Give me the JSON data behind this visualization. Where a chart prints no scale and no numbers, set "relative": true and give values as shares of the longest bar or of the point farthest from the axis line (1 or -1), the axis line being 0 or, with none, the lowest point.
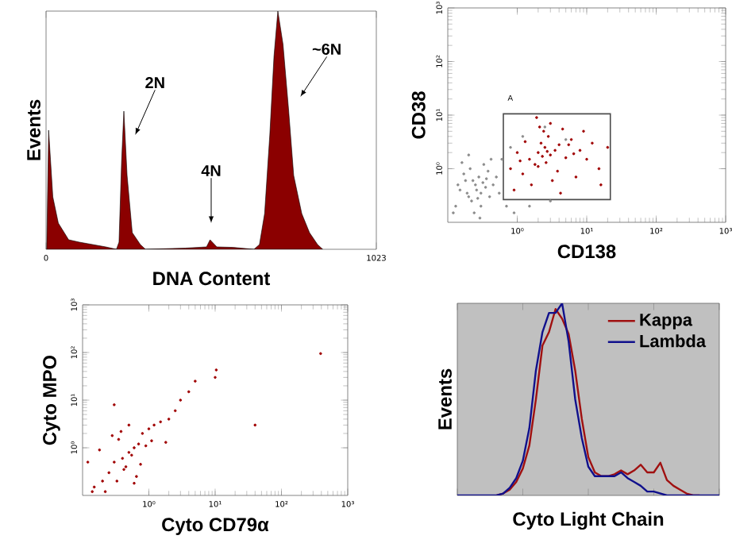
{
  "chart_data": [
    {
      "type": "area",
      "xlabel": "DNA Content",
      "ylabel": "Events",
      "relative": true,
      "color": "#8b0000",
      "x": [
        2,
        8,
        21,
        38,
        70,
        103,
        185,
        218,
        226,
        234,
        241,
        251,
        267,
        292,
        308,
        431,
        497,
        508,
        529,
        579,
        644,
        661,
        677,
        693,
        706,
        718,
        734,
        751,
        767,
        792,
        816,
        841,
        857
      ],
      "values": [
        0,
        0.5,
        0.22,
        0.11,
        0.04,
        0.03,
        0.01,
        0,
        0.03,
        0.37,
        0.58,
        0.31,
        0.07,
        0.02,
        0,
        0.005,
        0.01,
        0.04,
        0.01,
        0.008,
        0,
        0.02,
        0.15,
        0.48,
        0.81,
        1.0,
        0.86,
        0.59,
        0.31,
        0.15,
        0.07,
        0.02,
        0
      ],
      "xlim": [
        0,
        1023
      ],
      "xticks": [
        0,
        1023
      ],
      "annotations": [
        "2N",
        "4N",
        "~6N"
      ]
    },
    {
      "type": "scatter",
      "xlabel": "CD138",
      "ylabel": "CD38",
      "log": "xy",
      "xlim": [
        0.1,
        1000
      ],
      "ylim": [
        0.1,
        1000
      ],
      "xticks": [
        {
          "value": 1,
          "label": "10⁰"
        },
        {
          "value": 10,
          "label": "10¹"
        },
        {
          "value": 100,
          "label": "10²"
        },
        {
          "value": 1000,
          "label": "10³"
        }
      ],
      "yticks": [
        {
          "value": 1,
          "label": "10⁰"
        },
        {
          "value": 10,
          "label": "10¹"
        },
        {
          "value": 100,
          "label": "10²"
        },
        {
          "value": 1000,
          "label": "10³"
        }
      ],
      "series": [
        {
          "color": "#8c8c8c",
          "x": [
            0.15,
            0.2,
            0.25,
            0.3,
            0.18,
            0.22,
            0.28,
            0.35,
            0.4,
            0.13,
            0.17,
            0.24,
            0.32,
            0.45,
            0.21,
            0.26,
            0.19,
            0.3,
            0.5,
            0.14,
            0.23,
            0.27,
            0.38,
            0.16,
            0.2,
            0.33,
            0.6,
            0.8,
            1.2,
            2.5,
            5,
            0.7,
            0.9,
            1.5,
            3,
            0.55,
            0.12,
            0.42,
            0.29,
            0.36
          ],
          "values": [
            0.4,
            0.3,
            0.5,
            0.35,
            0.6,
            0.25,
            0.7,
            0.45,
            0.3,
            0.2,
            0.8,
            0.15,
            0.55,
            0.5,
            1.0,
            0.4,
            0.35,
            0.2,
            0.7,
            0.5,
            0.6,
            0.28,
            0.9,
            1.3,
            1.8,
            1.2,
            1.5,
            2.5,
            4,
            6,
            3.5,
            0.2,
            0.15,
            0.2,
            0.25,
            0.35,
            0.15,
            1.5,
            0.12,
            0.65
          ]
        },
        {
          "color": "#a00000",
          "x": [
            2,
            2.5,
            3,
            1.5,
            3.5,
            2.2,
            1.8,
            4,
            5,
            2.8,
            1.2,
            1,
            0.8,
            6,
            8,
            10,
            15,
            20,
            3.2,
            2.4,
            1.6,
            2.6,
            4.5,
            7,
            1.3,
            0.9,
            12,
            3,
            2,
            5.5,
            2.3,
            2.7,
            1.9,
            3.8,
            1.1,
            9,
            4.2,
            2.1,
            6.5,
            16
          ],
          "values": [
            2,
            2.5,
            1.8,
            1.5,
            2.2,
            3,
            1.2,
            2.8,
            1.6,
            4,
            0.8,
            2,
            1,
            3.5,
            2.2,
            1.5,
            1,
            2.5,
            0.6,
            5,
            0.5,
            1.3,
            5.5,
            0.7,
            3.2,
            0.4,
            3,
            7,
            1.1,
            2.8,
            1.7,
            2.1,
            9,
            0.9,
            1.4,
            5,
            0.35,
            6,
            1.9,
            0.5
          ]
        }
      ],
      "annotations": [
        "A"
      ]
    },
    {
      "type": "scatter",
      "xlabel": "Cyto CD79α",
      "ylabel": "Cyto MPO",
      "log": "xy",
      "color": "#a00000",
      "xlim": [
        0.1,
        1000
      ],
      "ylim": [
        0.1,
        1000
      ],
      "xticks": [
        {
          "value": 1,
          "label": "10⁰"
        },
        {
          "value": 10,
          "label": "10¹"
        },
        {
          "value": 100,
          "label": "10²"
        },
        {
          "value": 1000,
          "label": "10³"
        }
      ],
      "yticks": [
        {
          "value": 1,
          "label": "10⁰"
        },
        {
          "value": 10,
          "label": "10¹"
        },
        {
          "value": 100,
          "label": "10²"
        },
        {
          "value": 1000,
          "label": "10³"
        }
      ],
      "x": [
        0.5,
        0.4,
        0.6,
        0.3,
        0.7,
        0.45,
        0.55,
        0.35,
        0.8,
        1,
        1.2,
        0.25,
        0.2,
        0.15,
        0.12,
        0.9,
        1.5,
        2,
        0.65,
        0.38,
        0.28,
        0.75,
        1.1,
        0.5,
        0.42,
        0.18,
        0.14,
        0.3,
        2.5,
        3,
        4,
        5,
        10,
        10.4,
        1.8,
        0.6,
        0.22,
        0.33,
        390,
        40
      ],
      "values": [
        0.8,
        0.6,
        1.0,
        0.5,
        1.2,
        0.4,
        0.7,
        1.5,
        2,
        2.5,
        3,
        0.3,
        0.2,
        0.15,
        0.5,
        1.1,
        3.5,
        4,
        0.25,
        2.2,
        1.8,
        0.45,
        1.4,
        3,
        0.35,
        0.9,
        0.12,
        8,
        6,
        10,
        15,
        25,
        30,
        43,
        1.3,
        0.18,
        0.12,
        0.2,
        95,
        3
      ]
    },
    {
      "type": "line",
      "xlabel": "Cyto Light Chain",
      "ylabel": "Events",
      "relative": true,
      "legend": "top right",
      "categories": [
        null,
        null,
        null,
        null,
        null,
        null,
        null,
        null,
        null,
        null,
        null,
        null,
        null,
        null,
        null,
        null,
        null,
        null,
        null,
        null,
        null,
        null,
        null,
        null,
        null,
        null,
        null,
        null,
        null,
        null,
        null,
        null,
        null,
        null,
        null,
        null,
        null,
        null,
        null,
        null,
        null
      ],
      "series": [
        {
          "name": "Kappa",
          "color": "#a01010",
          "values": [
            null,
            null,
            null,
            null,
            null,
            null,
            0,
            0.01,
            0.03,
            0.07,
            0.14,
            0.26,
            0.5,
            0.78,
            0.85,
            0.97,
            0.92,
            0.84,
            0.65,
            0.4,
            0.2,
            0.12,
            0.1,
            0.1,
            0.11,
            0.13,
            0.11,
            0.13,
            0.16,
            0.12,
            0.12,
            0.17,
            0.08,
            0.05,
            0.03,
            0.01,
            0,
            0,
            null,
            null,
            null
          ]
        },
        {
          "name": "Lambda",
          "color": "#10108c",
          "values": [
            0,
            0,
            0,
            0,
            0,
            0,
            0,
            0.01,
            0.04,
            0.09,
            0.18,
            0.35,
            0.65,
            0.85,
            0.95,
            0.95,
            1.0,
            0.8,
            0.5,
            0.3,
            0.15,
            0.1,
            0.1,
            0.1,
            0.1,
            0.12,
            0.09,
            0.07,
            0.05,
            0.02,
            0.02,
            0.01,
            0,
            0,
            0,
            0,
            0,
            0,
            0,
            0,
            0
          ]
        }
      ]
    }
  ]
}
